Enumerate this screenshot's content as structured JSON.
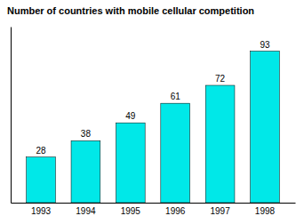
{
  "chart_data": {
    "type": "bar",
    "title": "Number of countries with mobile cellular competition",
    "categories": [
      "1993",
      "1994",
      "1995",
      "1996",
      "1997",
      "1998"
    ],
    "values": [
      28,
      38,
      49,
      61,
      72,
      93
    ],
    "color": "#00E8E8",
    "ylim": [
      0,
      108
    ],
    "data_labels": true,
    "tick_labels": "x",
    "grid": false
  }
}
